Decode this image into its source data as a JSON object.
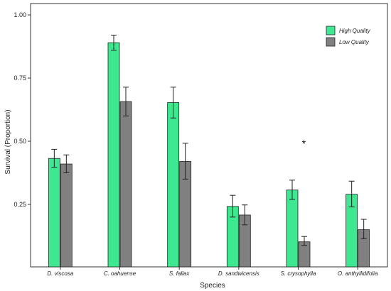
{
  "chart_data": {
    "type": "bar",
    "title": "",
    "xlabel": "Species",
    "ylabel": "Survival (Proportion)",
    "ylim": [
      0.1,
      1.0
    ],
    "yticks": [
      0.25,
      0.5,
      0.75,
      1.0
    ],
    "ytick_labels": [
      "0.25",
      "0.50",
      "0.75",
      "1.00"
    ],
    "categories": [
      "D. viscosa",
      "C. oahuense",
      "S. fallax",
      "D. sandwicensis",
      "S. crysophylla",
      "O. anthyllidifolia"
    ],
    "series": [
      {
        "name": "High Quality",
        "color": "#3de890",
        "values": [
          0.432,
          0.89,
          0.653,
          0.242,
          0.307,
          0.29
        ],
        "err_low": [
          0.397,
          0.86,
          0.592,
          0.2,
          0.27,
          0.24
        ],
        "err_high": [
          0.468,
          0.92,
          0.714,
          0.286,
          0.346,
          0.342
        ]
      },
      {
        "name": "Low Quality",
        "color": "#808080",
        "values": [
          0.41,
          0.657,
          0.42,
          0.208,
          0.102,
          0.15
        ],
        "err_low": [
          0.375,
          0.6,
          0.35,
          0.169,
          0.088,
          0.114
        ],
        "err_high": [
          0.446,
          0.714,
          0.492,
          0.248,
          0.123,
          0.191
        ]
      }
    ],
    "annotations": [
      {
        "text": "*",
        "category": "S. crysophylla",
        "y": 0.5
      }
    ],
    "legend_position": "top-right",
    "grid": false
  }
}
